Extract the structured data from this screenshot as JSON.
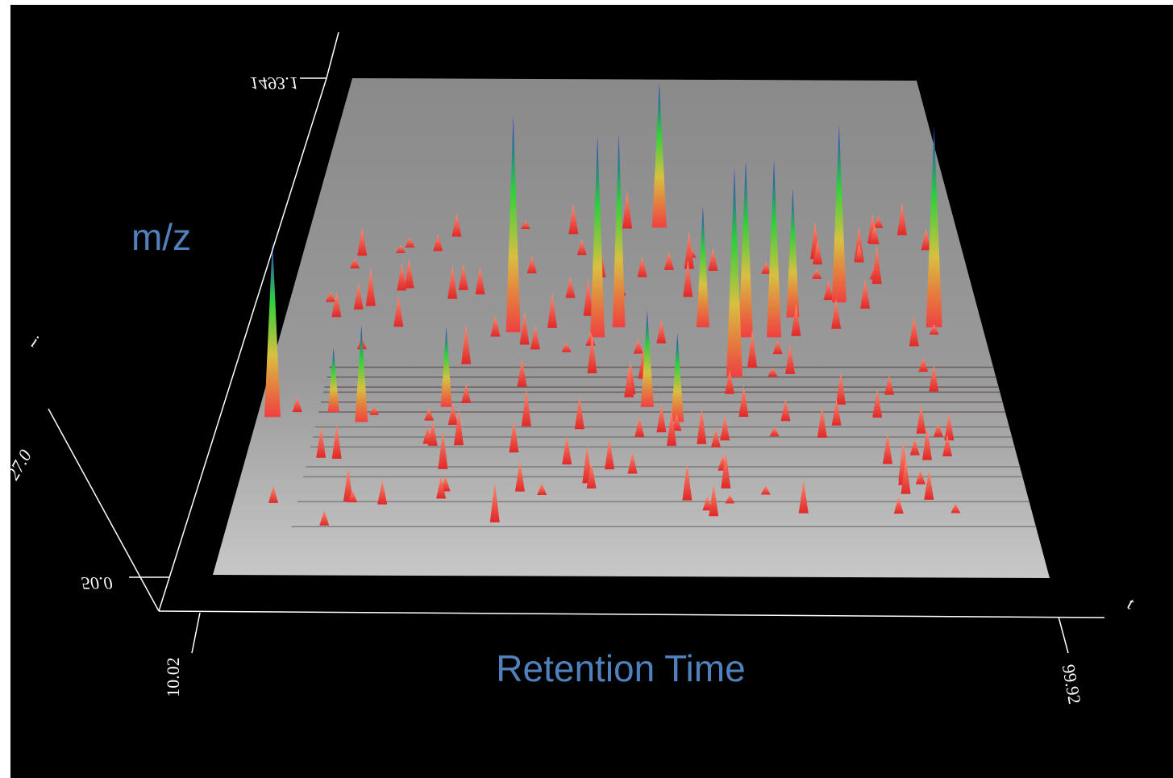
{
  "axes": {
    "y_label": "m/z",
    "x_label": "Retention Time",
    "x_start": "10.02",
    "x_end": "99.92",
    "y_start": "50.0",
    "y_end": "1493.1",
    "intensity_axis": "i",
    "time_axis": "t",
    "intensity_tick": "27.0"
  }
}
